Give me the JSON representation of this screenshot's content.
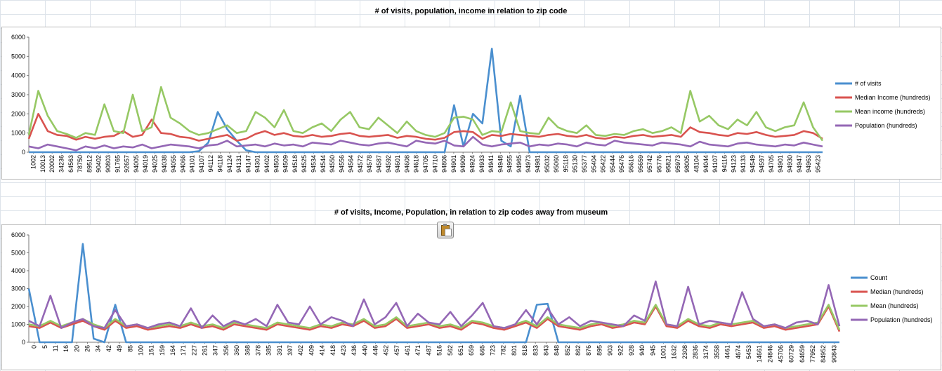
{
  "colors": {
    "blue": "#4a8fcf",
    "red": "#d9534f",
    "green": "#96c864",
    "purple": "#9467b5",
    "axis": "#777777"
  },
  "icons": [
    "paste-options-icon"
  ],
  "chart_data": [
    {
      "type": "line",
      "title": "# of visits, population, income in relation to zip code",
      "ylim": [
        0,
        6000
      ],
      "yticks": [
        0,
        1000,
        2000,
        3000,
        4000,
        5000,
        6000
      ],
      "grid": false,
      "legend_position": "right",
      "x_tick_labels": [
        "1002",
        "10013",
        "20002",
        "34236",
        "64563",
        "78750",
        "89512",
        "90402",
        "90803",
        "91765",
        "92657",
        "94005",
        "94019",
        "94025",
        "94038",
        "94055",
        "94066",
        "94101",
        "94107",
        "94112",
        "94118",
        "94124",
        "94131",
        "94147",
        "94301",
        "94402",
        "94503",
        "94509",
        "94518",
        "94525",
        "94534",
        "94544",
        "94550",
        "94556",
        "94564",
        "94572",
        "94578",
        "94587",
        "94592",
        "94601",
        "94608",
        "94618",
        "94705",
        "94710",
        "94806",
        "94901",
        "94909",
        "94924",
        "94933",
        "94941",
        "94948",
        "94955",
        "94965",
        "94973",
        "94981",
        "95032",
        "95060",
        "95118",
        "95130",
        "95377",
        "95404",
        "95422",
        "95444",
        "95476",
        "95616",
        "95659",
        "95742",
        "95776",
        "95821",
        "95973",
        "98005",
        "48104",
        "94044",
        "94107",
        "94116",
        "94123",
        "94133",
        "94549",
        "94597",
        "94705",
        "94901",
        "94930",
        "94947",
        "94963",
        "95423"
      ],
      "series": [
        {
          "name": "# of visits",
          "values": [
            0,
            0,
            0,
            0,
            0,
            0,
            0,
            0,
            0,
            0,
            0,
            0,
            0,
            0,
            0,
            0,
            0,
            0,
            50,
            500,
            2100,
            1200,
            600,
            100,
            0,
            0,
            0,
            0,
            0,
            0,
            0,
            0,
            0,
            0,
            0,
            0,
            0,
            0,
            0,
            0,
            0,
            0,
            0,
            0,
            0,
            2450,
            300,
            2000,
            1500,
            5400,
            600,
            300,
            2950,
            0,
            0,
            0,
            0,
            0,
            0,
            0,
            0,
            0,
            0,
            0,
            0,
            0,
            0,
            0,
            0,
            0,
            0,
            0,
            0,
            0,
            0,
            0,
            0,
            0,
            0,
            0,
            0,
            0,
            0,
            0,
            0
          ]
        },
        {
          "name": "Median Income (hundreds)",
          "values": [
            700,
            2000,
            1100,
            900,
            850,
            650,
            800,
            700,
            800,
            850,
            1100,
            800,
            900,
            1700,
            1000,
            950,
            800,
            750,
            600,
            700,
            800,
            900,
            600,
            700,
            950,
            1100,
            900,
            1000,
            850,
            800,
            900,
            800,
            850,
            950,
            1000,
            850,
            800,
            850,
            900,
            750,
            850,
            800,
            700,
            650,
            750,
            1050,
            1100,
            1050,
            700,
            900,
            850,
            950,
            900,
            850,
            800,
            900,
            950,
            850,
            800,
            900,
            750,
            700,
            800,
            750,
            850,
            900,
            800,
            850,
            900,
            800,
            1300,
            1050,
            1000,
            900,
            850,
            1000,
            950,
            1050,
            900,
            800,
            850,
            900,
            1100,
            1000,
            700
          ]
        },
        {
          "name": "Mean income (hundreds)",
          "values": [
            900,
            3200,
            1900,
            1100,
            950,
            750,
            1000,
            900,
            2500,
            1100,
            1000,
            3000,
            1100,
            1300,
            3400,
            1800,
            1500,
            1100,
            900,
            1000,
            1200,
            1400,
            1000,
            1100,
            2100,
            1800,
            1300,
            2200,
            1100,
            1000,
            1300,
            1500,
            1100,
            1700,
            2100,
            1300,
            1200,
            1800,
            1400,
            1000,
            1600,
            1100,
            900,
            800,
            1000,
            1800,
            1850,
            1700,
            900,
            1100,
            1050,
            2600,
            1100,
            1000,
            950,
            1800,
            1300,
            1100,
            1000,
            1400,
            900,
            850,
            950,
            900,
            1100,
            1200,
            1000,
            1100,
            1300,
            1000,
            3200,
            1600,
            1900,
            1400,
            1200,
            1700,
            1400,
            2100,
            1300,
            1100,
            1300,
            1400,
            2600,
            1300,
            600
          ]
        },
        {
          "name": "Population (hundreds)",
          "values": [
            300,
            200,
            400,
            300,
            200,
            100,
            300,
            200,
            350,
            200,
            300,
            250,
            400,
            200,
            300,
            400,
            350,
            300,
            200,
            350,
            400,
            600,
            300,
            350,
            400,
            300,
            450,
            350,
            400,
            300,
            500,
            450,
            400,
            600,
            500,
            400,
            350,
            450,
            500,
            400,
            300,
            600,
            500,
            450,
            600,
            350,
            300,
            800,
            400,
            300,
            400,
            450,
            500,
            300,
            400,
            350,
            450,
            400,
            300,
            500,
            400,
            350,
            600,
            500,
            450,
            400,
            350,
            500,
            450,
            400,
            300,
            550,
            400,
            350,
            300,
            450,
            500,
            400,
            350,
            300,
            400,
            350,
            500,
            400,
            300
          ]
        }
      ]
    },
    {
      "type": "line",
      "title": "# of visits, Income, Population, in relation to zip codes away from museum",
      "ylim": [
        0,
        6000
      ],
      "yticks": [
        0,
        1000,
        2000,
        3000,
        4000,
        5000,
        6000
      ],
      "grid": false,
      "legend_position": "right",
      "x_tick_labels": [
        "0",
        "5",
        "11",
        "16",
        "20",
        "26",
        "34",
        "42",
        "49",
        "85",
        "100",
        "151",
        "159",
        "164",
        "171",
        "227",
        "261",
        "347",
        "356",
        "360",
        "368",
        "378",
        "385",
        "391",
        "397",
        "402",
        "409",
        "414",
        "418",
        "423",
        "436",
        "440",
        "446",
        "452",
        "457",
        "461",
        "471",
        "487",
        "516",
        "562",
        "651",
        "659",
        "665",
        "723",
        "782",
        "801",
        "818",
        "833",
        "843",
        "848",
        "852",
        "862",
        "876",
        "895",
        "903",
        "922",
        "928",
        "940",
        "945",
        "1001",
        "1632",
        "2308",
        "2836",
        "3174",
        "3558",
        "4461",
        "4674",
        "5453",
        "14661",
        "24846",
        "45706",
        "60729",
        "64659",
        "77952",
        "84952",
        "90843"
      ],
      "series": [
        {
          "name": "Count",
          "values": [
            3000,
            0,
            0,
            0,
            0,
            5500,
            200,
            0,
            2100,
            0,
            0,
            0,
            0,
            0,
            0,
            0,
            0,
            0,
            0,
            0,
            0,
            0,
            0,
            0,
            0,
            0,
            0,
            0,
            0,
            0,
            0,
            0,
            0,
            0,
            0,
            0,
            0,
            0,
            0,
            0,
            0,
            0,
            0,
            0,
            0,
            0,
            0,
            2100,
            2150,
            0,
            0,
            0,
            0,
            0,
            0,
            0,
            0,
            0,
            0,
            0,
            0,
            0,
            0,
            0,
            0,
            0,
            0,
            0,
            0,
            0,
            0,
            0,
            0,
            0,
            0,
            0
          ]
        },
        {
          "name": "Median (hundreds)",
          "values": [
            900,
            800,
            1100,
            800,
            1000,
            1200,
            900,
            700,
            1200,
            800,
            900,
            700,
            800,
            900,
            800,
            1000,
            800,
            900,
            700,
            1000,
            900,
            800,
            700,
            1000,
            900,
            800,
            700,
            900,
            800,
            1000,
            900,
            1200,
            800,
            900,
            1300,
            800,
            900,
            1000,
            800,
            900,
            700,
            1100,
            1000,
            800,
            700,
            900,
            1100,
            800,
            1300,
            900,
            800,
            700,
            900,
            1000,
            800,
            900,
            1100,
            1000,
            2000,
            900,
            800,
            1200,
            900,
            800,
            1000,
            900,
            1000,
            1100,
            800,
            900,
            700,
            800,
            900,
            1000,
            2000,
            600
          ]
        },
        {
          "name": "Mean (hundreds)",
          "values": [
            1000,
            900,
            1200,
            900,
            1100,
            1300,
            1000,
            800,
            1300,
            900,
            1000,
            800,
            900,
            1000,
            900,
            1100,
            900,
            1000,
            800,
            1100,
            1000,
            900,
            800,
            1100,
            1000,
            900,
            800,
            1000,
            900,
            1100,
            1000,
            1300,
            900,
            1000,
            1400,
            900,
            1000,
            1100,
            900,
            1000,
            800,
            1200,
            1100,
            900,
            800,
            1000,
            1200,
            900,
            1400,
            1000,
            900,
            800,
            1000,
            1100,
            900,
            1000,
            1200,
            1100,
            2100,
            1000,
            900,
            1300,
            1000,
            900,
            1100,
            1000,
            1100,
            1200,
            900,
            1000,
            800,
            900,
            1000,
            1100,
            2100,
            700
          ]
        },
        {
          "name": "Population (hundreds)",
          "values": [
            1200,
            900,
            2600,
            800,
            1100,
            1300,
            900,
            800,
            1800,
            900,
            1000,
            800,
            1000,
            1100,
            900,
            1900,
            800,
            1500,
            900,
            1200,
            1000,
            1300,
            900,
            2100,
            1100,
            1000,
            2000,
            1000,
            1400,
            1200,
            900,
            2400,
            1000,
            1400,
            2200,
            900,
            1600,
            1100,
            1000,
            1700,
            900,
            1500,
            2200,
            900,
            800,
            1000,
            1800,
            1000,
            1900,
            1000,
            1400,
            900,
            1200,
            1100,
            1000,
            900,
            1500,
            1200,
            3400,
            1000,
            900,
            3100,
            1000,
            1200,
            1100,
            1000,
            2800,
            1300,
            900,
            1000,
            800,
            1100,
            1200,
            1000,
            3200,
            900
          ]
        }
      ]
    }
  ]
}
